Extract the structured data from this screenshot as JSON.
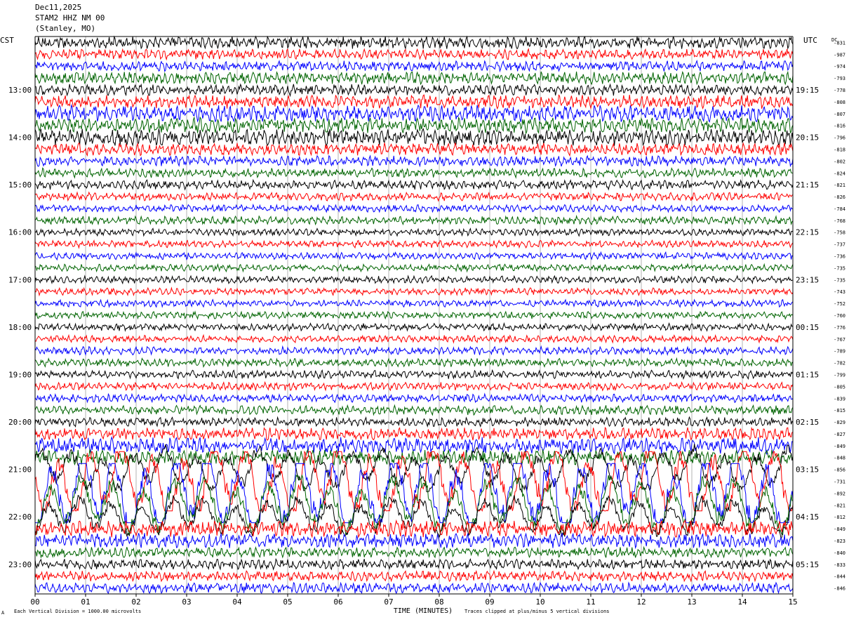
{
  "header": {
    "date": "Dec11,2025",
    "station": "STAM2 HHZ NM 00",
    "location": "(Stanley, MO)",
    "left_tz": "CST",
    "right_tz": "UTC",
    "dc_label": "DC"
  },
  "footer": {
    "scale_note": "Each Vertical Division = 1000.00 microvolts",
    "clip_note": "Traces clipped at plus/minus 5 vertical divisions",
    "corner_mark": "A"
  },
  "colors": {
    "trace_cycle": [
      "#000000",
      "#ff0000",
      "#0000ff",
      "#006400"
    ],
    "grid": "#808080",
    "frame": "#000000"
  },
  "chart_data": {
    "type": "line",
    "title": "",
    "xlabel": "TIME (MINUTES)",
    "x_ticks": [
      "00",
      "01",
      "02",
      "03",
      "04",
      "05",
      "06",
      "07",
      "08",
      "09",
      "10",
      "11",
      "12",
      "13",
      "14",
      "15"
    ],
    "xlim": [
      0,
      15
    ],
    "traces_per_hour": 4,
    "left_hour_labels": [
      "13:00",
      "14:00",
      "15:00",
      "16:00",
      "17:00",
      "18:00",
      "19:00",
      "20:00",
      "21:00",
      "22:00",
      "23:00"
    ],
    "right_hour_labels": [
      "19:15",
      "20:15",
      "21:15",
      "22:15",
      "23:15",
      "00:15",
      "01:15",
      "02:15",
      "03:15",
      "04:15",
      "05:15"
    ],
    "dc_offsets": [
      -831,
      -987,
      -974,
      -793,
      -778,
      -808,
      -807,
      -816,
      -796,
      -818,
      -802,
      -824,
      -821,
      -826,
      -784,
      -768,
      -758,
      -737,
      -736,
      -735,
      -735,
      -743,
      -752,
      -760,
      -776,
      -767,
      -789,
      -782,
      -799,
      -805,
      -839,
      -815,
      -829,
      -827,
      -849,
      -848,
      -856,
      -731,
      -892,
      -821,
      -812,
      -849,
      -823,
      -840,
      -833,
      -844,
      -846
    ],
    "trace_amplitude_divisions": [
      1.2,
      1.0,
      1.0,
      1.2,
      1.1,
      1.3,
      1.6,
      1.5,
      1.6,
      1.2,
      1.0,
      0.9,
      0.9,
      0.8,
      0.7,
      0.8,
      0.7,
      0.7,
      0.7,
      0.7,
      0.7,
      0.7,
      0.7,
      0.7,
      0.7,
      0.7,
      0.8,
      0.8,
      0.8,
      0.8,
      0.8,
      0.9,
      0.9,
      1.2,
      1.6,
      1.5,
      2.2,
      4.0,
      4.5,
      3.0,
      2.0,
      1.6,
      1.4,
      1.0,
      1.0,
      1.0,
      1.0
    ]
  }
}
